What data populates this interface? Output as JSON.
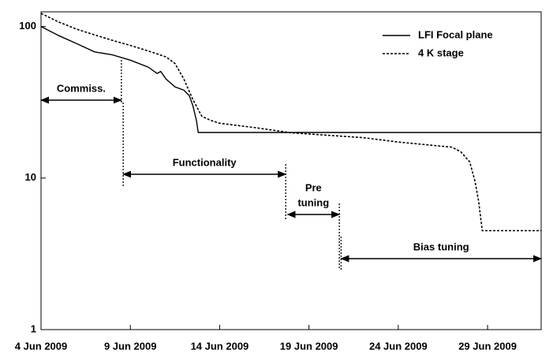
{
  "chart_data": {
    "type": "line",
    "log_y": true,
    "xlim": [
      0,
      28
    ],
    "xticks": [
      {
        "value": 0,
        "label": "4 Jun 2009"
      },
      {
        "value": 5,
        "label": "9 Jun 2009"
      },
      {
        "value": 10,
        "label": "14 Jun 2009"
      },
      {
        "value": 15,
        "label": "19 Jun 2009"
      },
      {
        "value": 20,
        "label": "24 Jun 2009"
      },
      {
        "value": 25,
        "label": "29 Jun 2009"
      }
    ],
    "ylim": [
      1,
      125
    ],
    "yticks": [
      1,
      10,
      100
    ],
    "legend": "upper right",
    "series": [
      {
        "name": "LFI Focal plane",
        "color": "#000000",
        "style": "solid",
        "x": [
          0,
          1,
          2,
          3,
          4,
          5,
          6,
          6.5,
          6.7,
          7,
          7.5,
          8,
          8.3,
          8.5,
          8.7,
          8.8,
          28
        ],
        "values": [
          100,
          87,
          77,
          68,
          65,
          60,
          54,
          49,
          50.5,
          45,
          40,
          38,
          35,
          30,
          24,
          20,
          20
        ]
      },
      {
        "name": "4 K stage",
        "color": "#000000",
        "style": "dotted",
        "x": [
          0,
          1,
          2,
          3,
          4,
          5,
          6,
          7,
          7.5,
          8,
          8.5,
          9,
          9.5,
          10,
          12,
          14,
          18,
          20,
          22,
          23,
          23.5,
          24,
          24.3,
          24.5,
          24.7,
          28
        ],
        "values": [
          122,
          107,
          96,
          88,
          81,
          75,
          69,
          63,
          57,
          45,
          33,
          25.6,
          24,
          23,
          21.5,
          19.9,
          18.5,
          17.3,
          16.4,
          16,
          14.9,
          12.8,
          9.5,
          7,
          4.5,
          4.5
        ]
      }
    ],
    "annotations": [
      {
        "text": [
          "Commiss."
        ],
        "start": 0,
        "end": 4.5
      },
      {
        "text": [
          "Functionality"
        ],
        "start": 4.6,
        "end": 13.7
      },
      {
        "text": [
          "Pre",
          "tuning"
        ],
        "start": 13.8,
        "end": 16.7
      },
      {
        "text": [
          "Bias tuning"
        ],
        "start": 16.8,
        "end": 28
      }
    ]
  }
}
